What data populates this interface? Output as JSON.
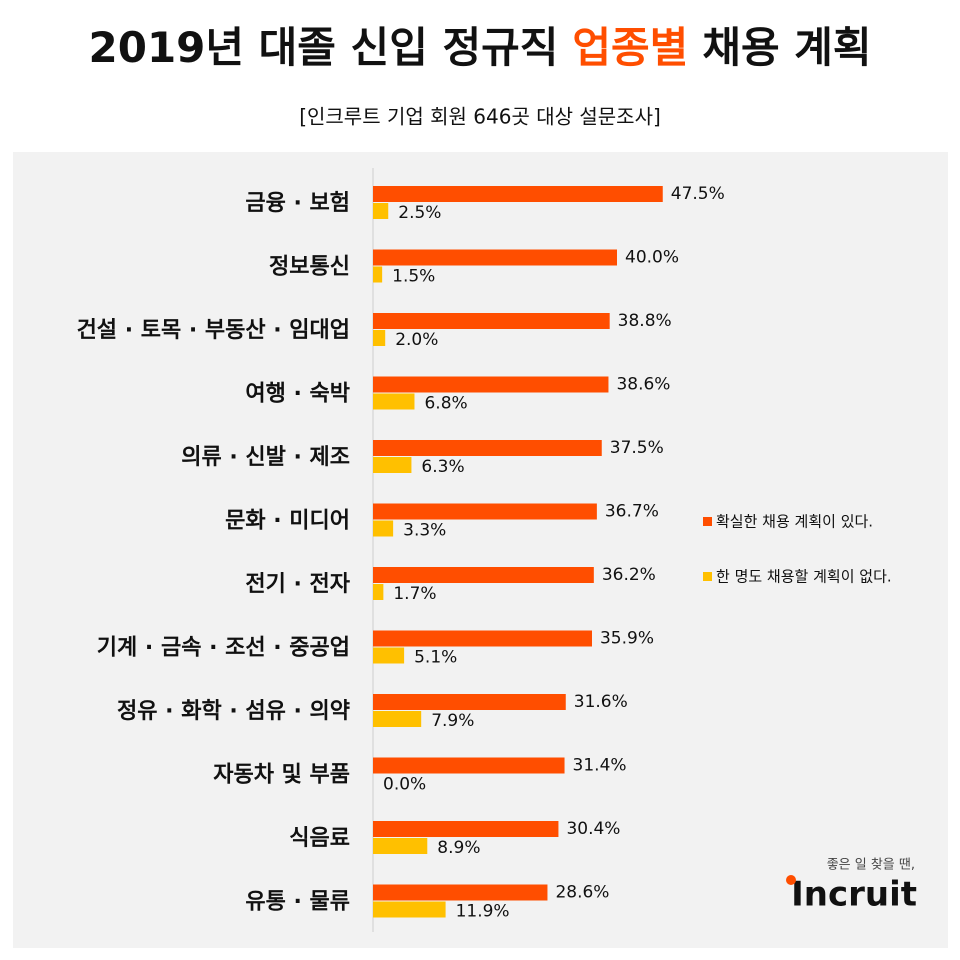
{
  "chart_data": {
    "type": "bar",
    "orientation": "horizontal",
    "title": [
      "2019년 대졸 신입 정규직",
      "업종별",
      "채용 계획"
    ],
    "title_colors": [
      "#111111",
      "#ff4e00",
      "#111111"
    ],
    "subtitle": "[인크루트 기업 회원 646곳 대상 설문조사]",
    "categories": [
      "금융 · 보험",
      "정보통신",
      "건설 · 토목 · 부동산 · 임대업",
      "여행 · 숙박",
      "의류 · 신발 · 제조",
      "문화 · 미디어",
      "전기 · 전자",
      "기계 · 금속 · 조선 · 중공업",
      "정유 · 화학 · 섬유 · 의약",
      "자동차 및 부품",
      "식음료",
      "유통 · 물류"
    ],
    "series": [
      {
        "name": "확실한 채용 계획이 있다.",
        "color": "#ff4e00",
        "values": [
          47.5,
          40.0,
          38.8,
          38.6,
          37.5,
          36.7,
          36.2,
          35.9,
          31.6,
          31.4,
          30.4,
          28.6
        ],
        "value_labels": [
          "47.5%",
          "40.0%",
          "38.8%",
          "38.6%",
          "37.5%",
          "36.7%",
          "36.2%",
          "35.9%",
          "31.6%",
          "31.4%",
          "30.4%",
          "28.6%"
        ]
      },
      {
        "name": "한 명도 채용할 계획이 없다.",
        "color": "#ffc000",
        "values": [
          2.5,
          1.5,
          2.0,
          6.8,
          6.3,
          3.3,
          1.7,
          5.1,
          7.9,
          0.0,
          8.9,
          11.9
        ],
        "value_labels": [
          "2.5%",
          "1.5%",
          "2.0%",
          "6.8%",
          "6.3%",
          "3.3%",
          "1.7%",
          "5.1%",
          "7.9%",
          "0.0%",
          "8.9%",
          "11.9%"
        ]
      }
    ],
    "legend": "right"
  },
  "logo": {
    "tagline": "좋은 일 찾을 땐,",
    "name": "Incruit"
  }
}
